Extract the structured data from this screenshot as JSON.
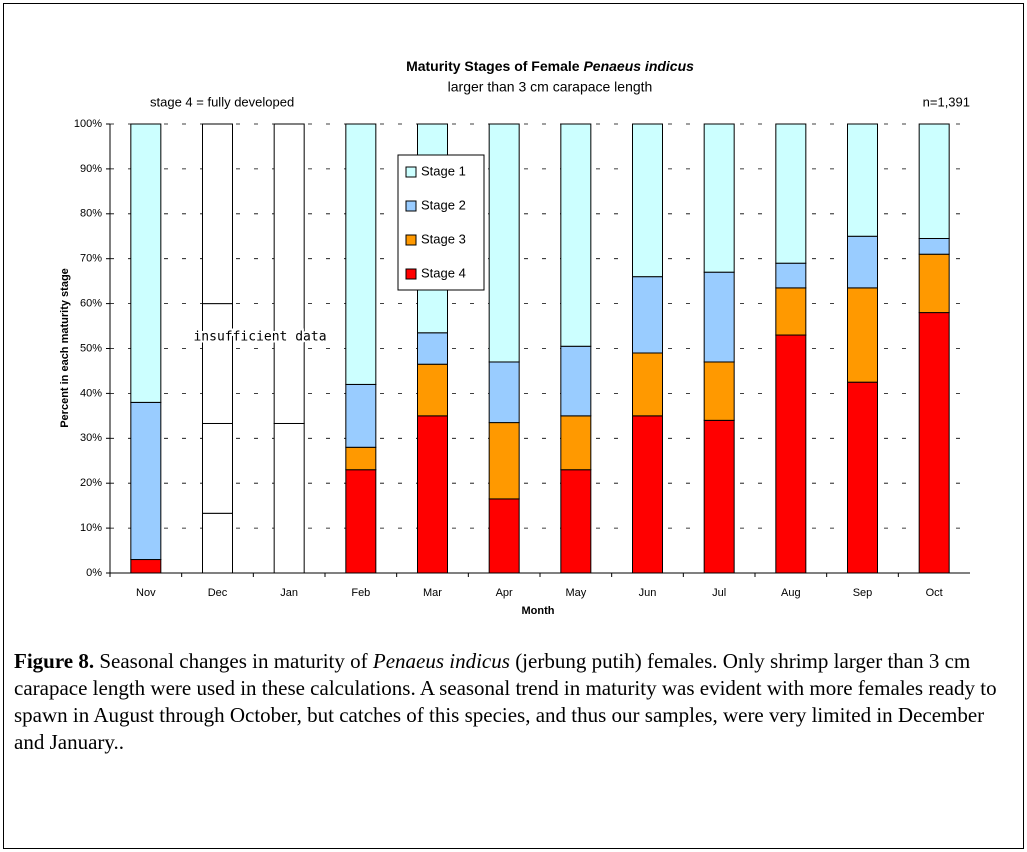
{
  "chart_data": {
    "type": "stacked_bar",
    "title": "Maturity Stages of Female",
    "title_italic": "Penaeus indicus",
    "subtitle": "larger than 3 cm carapace length",
    "annotations": [
      "stage 4 = fully developed",
      "n=1,391"
    ],
    "insufficient_data": {
      "label": "insufficient data",
      "categories": [
        "Dec",
        "Jan"
      ]
    },
    "x_label": "Month",
    "y_label": "Percent in each maturity stage",
    "categories": [
      "Nov",
      "Dec",
      "Jan",
      "Feb",
      "Mar",
      "Apr",
      "May",
      "Jun",
      "Jul",
      "Aug",
      "Sep",
      "Oct"
    ],
    "series": [
      {
        "name": "Stage 4",
        "color": "#ff0000",
        "values": [
          3,
          13.3,
          0,
          23,
          35,
          16.5,
          23,
          35,
          34,
          53,
          42.5,
          58
        ]
      },
      {
        "name": "Stage 3",
        "color": "#ff9900",
        "values": [
          0,
          20,
          0,
          5,
          11.5,
          17,
          12,
          14,
          13,
          10.5,
          21,
          13
        ]
      },
      {
        "name": "Stage 2",
        "color": "#99ccff",
        "values": [
          35,
          26.7,
          33.3,
          14,
          7,
          13.5,
          15.5,
          17,
          20,
          5.5,
          11.5,
          3.5
        ]
      },
      {
        "name": "Stage 1",
        "color": "#ccffff",
        "values": [
          62,
          40,
          66.7,
          58,
          46.5,
          53,
          49.5,
          34,
          33,
          31,
          25,
          25.5
        ]
      }
    ],
    "ylim": [
      0,
      100
    ],
    "yticks": [
      {
        "value": 0,
        "label": "0%"
      },
      {
        "value": 10,
        "label": "10%"
      },
      {
        "value": 20,
        "label": "20%"
      },
      {
        "value": 30,
        "label": "30%"
      },
      {
        "value": 40,
        "label": "40%"
      },
      {
        "value": 50,
        "label": "50%"
      },
      {
        "value": 60,
        "label": "60%"
      },
      {
        "value": 70,
        "label": "70%"
      },
      {
        "value": 80,
        "label": "80%"
      },
      {
        "value": 90,
        "label": "90%"
      },
      {
        "value": 100,
        "label": "100%"
      }
    ],
    "grid": true
  },
  "caption": {
    "label": "Figure 8.",
    "text1": " Seasonal changes in maturity of ",
    "italic": "Penaeus indicus",
    "text2": " (jerbung putih) females. Only shrimp larger than 3 cm carapace length were used in these calculations. A seasonal trend in maturity was evident with more females ready to spawn in August through October, but catches of this species, and thus our samples, were very limited in December and January.."
  }
}
